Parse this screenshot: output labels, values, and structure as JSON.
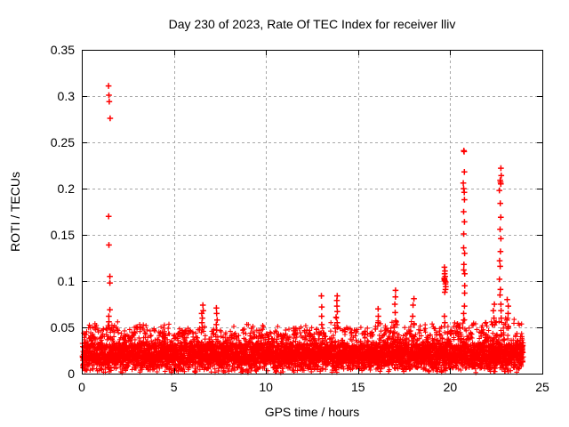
{
  "chart_data": {
    "type": "scatter",
    "title": "Day 230 of 2023, Rate Of TEC Index for receiver lliv",
    "xlabel": "GPS time / hours",
    "ylabel": "ROTI / TECUs",
    "xlim": [
      0,
      25
    ],
    "ylim": [
      0,
      0.35
    ],
    "xticks": [
      0,
      5,
      10,
      15,
      20,
      25
    ],
    "xtick_labels": [
      "0",
      "5",
      "10",
      "15",
      "20",
      "25"
    ],
    "yticks": [
      0,
      0.05,
      0.1,
      0.15,
      0.2,
      0.25,
      0.3,
      0.35
    ],
    "ytick_labels": [
      "0",
      "0.05",
      "0.1",
      "0.15",
      "0.2",
      "0.25",
      "0.3",
      "0.35"
    ],
    "grid": true,
    "grid_style": "dashed",
    "legend": "none",
    "marker": "plus",
    "colors": {
      "points": "#ff0000",
      "grid": "#a8a8a8",
      "axis": "#000000",
      "text": "#000000",
      "background": "#ffffff"
    },
    "baseline_band": {
      "description": "Dense noise floor of ROTI values for all satellites, 0-24 h; solid mass ~0.005-0.034 TECU with spiky fringe reaching ~0.04-0.05 TECU (higher near listed bump hours).",
      "seed": 1337,
      "n_points": 6000,
      "x_start": 0.02,
      "x_end": 23.97,
      "y_floor": 0.004,
      "y_core_top": 0.034,
      "fringe_lo": 0.028,
      "fringe_base": 0.045,
      "fringe_prob": 0.24,
      "bumps": [
        [
          0.3,
          0.008
        ],
        [
          0.7,
          0.01
        ],
        [
          1.1,
          0.006
        ],
        [
          1.55,
          0.013
        ],
        [
          1.9,
          0.012
        ],
        [
          2.4,
          0.009
        ],
        [
          3.0,
          0.012
        ],
        [
          3.4,
          0.008
        ],
        [
          3.9,
          0.01
        ],
        [
          4.3,
          0.008
        ],
        [
          4.7,
          0.009
        ],
        [
          5.2,
          0.006
        ],
        [
          5.9,
          0.007
        ],
        [
          6.55,
          0.012
        ],
        [
          7.35,
          0.012
        ],
        [
          8.3,
          0.01
        ],
        [
          8.9,
          0.008
        ],
        [
          9.2,
          0.01
        ],
        [
          9.9,
          0.012
        ],
        [
          10.7,
          0.008
        ],
        [
          11.2,
          0.007
        ],
        [
          11.7,
          0.006
        ],
        [
          12.1,
          0.007
        ],
        [
          12.5,
          0.008
        ],
        [
          13.0,
          0.013
        ],
        [
          13.5,
          0.009
        ],
        [
          13.85,
          0.014
        ],
        [
          14.4,
          0.008
        ],
        [
          14.9,
          0.009
        ],
        [
          15.4,
          0.01
        ],
        [
          16.1,
          0.013
        ],
        [
          16.6,
          0.009
        ],
        [
          17.0,
          0.015
        ],
        [
          17.5,
          0.009
        ],
        [
          18.0,
          0.014
        ],
        [
          18.5,
          0.01
        ],
        [
          19.0,
          0.012
        ],
        [
          19.7,
          0.013
        ],
        [
          20.3,
          0.012
        ],
        [
          20.75,
          0.014
        ],
        [
          21.2,
          0.01
        ],
        [
          21.6,
          0.011
        ],
        [
          22.0,
          0.01
        ],
        [
          22.4,
          0.013
        ],
        [
          22.8,
          0.014
        ],
        [
          23.1,
          0.013
        ],
        [
          23.5,
          0.012
        ],
        [
          23.8,
          0.009
        ]
      ]
    },
    "spikes": [
      {
        "x": 1.5,
        "values": [
          0.311,
          0.301,
          0.294,
          0.276,
          0.17,
          0.139,
          0.105,
          0.098,
          0.069,
          0.062,
          0.056,
          0.05
        ]
      },
      {
        "x": 6.55,
        "values": [
          0.074,
          0.068,
          0.065,
          0.06,
          0.055,
          0.05
        ]
      },
      {
        "x": 7.35,
        "values": [
          0.071,
          0.065,
          0.058,
          0.053,
          0.047
        ]
      },
      {
        "x": 13.0,
        "values": [
          0.084,
          0.072,
          0.062,
          0.053
        ]
      },
      {
        "x": 13.85,
        "values": [
          0.084,
          0.079,
          0.073,
          0.067,
          0.061,
          0.055,
          0.05
        ]
      },
      {
        "x": 16.1,
        "values": [
          0.07,
          0.062,
          0.055
        ]
      },
      {
        "x": 17.0,
        "values": [
          0.09,
          0.083,
          0.075,
          0.066,
          0.057,
          0.05
        ]
      },
      {
        "x": 18.0,
        "values": [
          0.081,
          0.074,
          0.062,
          0.053
        ]
      },
      {
        "x": 19.72,
        "values": [
          0.115,
          0.111,
          0.108,
          0.105,
          0.103,
          0.102,
          0.101,
          0.1,
          0.099,
          0.097,
          0.094,
          0.091,
          0.088,
          0.062,
          0.055
        ]
      },
      {
        "x": 20.75,
        "values": [
          0.241,
          0.24,
          0.218,
          0.206,
          0.2,
          0.196,
          0.188,
          0.175,
          0.164,
          0.151,
          0.136,
          0.13,
          0.118,
          0.112,
          0.108,
          0.095,
          0.087,
          0.073,
          0.065,
          0.058
        ]
      },
      {
        "x": 22.35,
        "values": [
          0.075,
          0.068,
          0.06,
          0.053
        ]
      },
      {
        "x": 22.72,
        "values": [
          0.222,
          0.214,
          0.209,
          0.207,
          0.205,
          0.198,
          0.184,
          0.169,
          0.156,
          0.146,
          0.132,
          0.122,
          0.116,
          0.102,
          0.091,
          0.085,
          0.075,
          0.068,
          0.06
        ]
      },
      {
        "x": 23.1,
        "values": [
          0.08,
          0.073,
          0.065,
          0.058,
          0.051
        ]
      }
    ]
  }
}
